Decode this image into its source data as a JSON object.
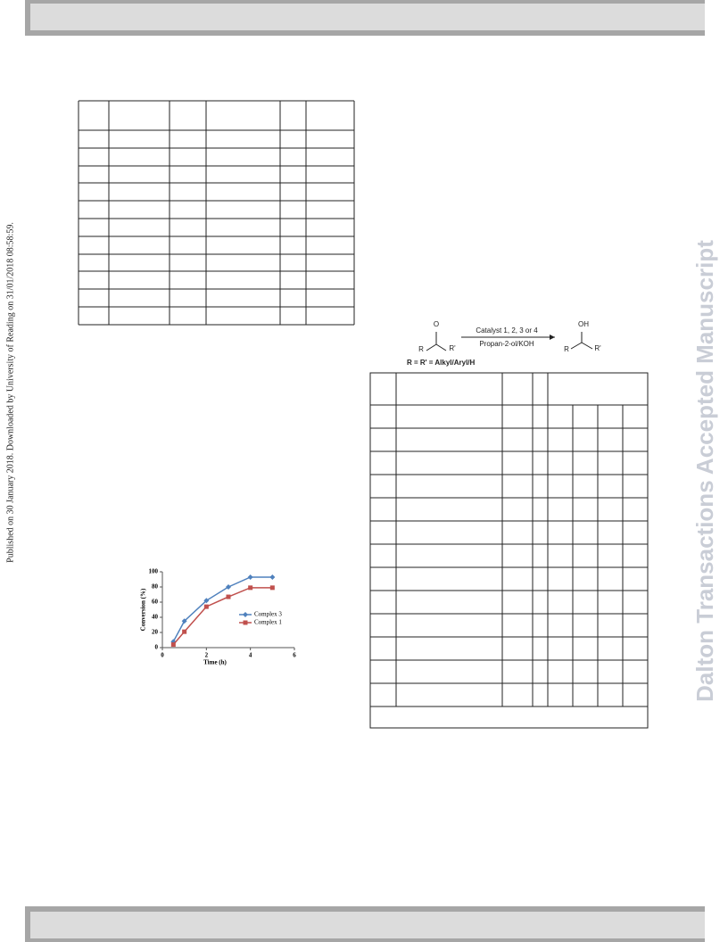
{
  "margin_note": "Published on 30 January 2018. Downloaded by University of Reading on 31/01/2018 08:58:59.",
  "watermark": "Dalton Transactions Accepted Manuscript",
  "scheme": {
    "reactant_o": "O",
    "r1": "R",
    "r2": "R'",
    "catalyst": "Catalyst 1, 2, 3 or 4",
    "solvent": "Propan-2-ol/KOH",
    "product_oh": "OH",
    "r3": "R",
    "r4": "R'",
    "substituents": "R = R' = Alkyl/Aryl/H"
  },
  "chart_data": {
    "type": "line",
    "xlabel": "Time (h)",
    "ylabel": "Conversion (%)",
    "x": [
      0.5,
      1,
      2,
      3,
      4,
      5
    ],
    "series": [
      {
        "name": "Complex 3",
        "color": "#4f81bd",
        "marker": "diamond",
        "values": [
          8,
          35,
          62,
          80,
          93,
          93
        ]
      },
      {
        "name": "Complex 1",
        "color": "#c0504d",
        "marker": "square",
        "values": [
          4,
          21,
          54,
          67,
          79,
          79
        ]
      }
    ],
    "xlim": [
      0,
      6
    ],
    "xticks": [
      0,
      2,
      4,
      6
    ],
    "ylim": [
      0,
      100
    ],
    "yticks": [
      0,
      20,
      40,
      60,
      80,
      100
    ],
    "legend": "right"
  }
}
